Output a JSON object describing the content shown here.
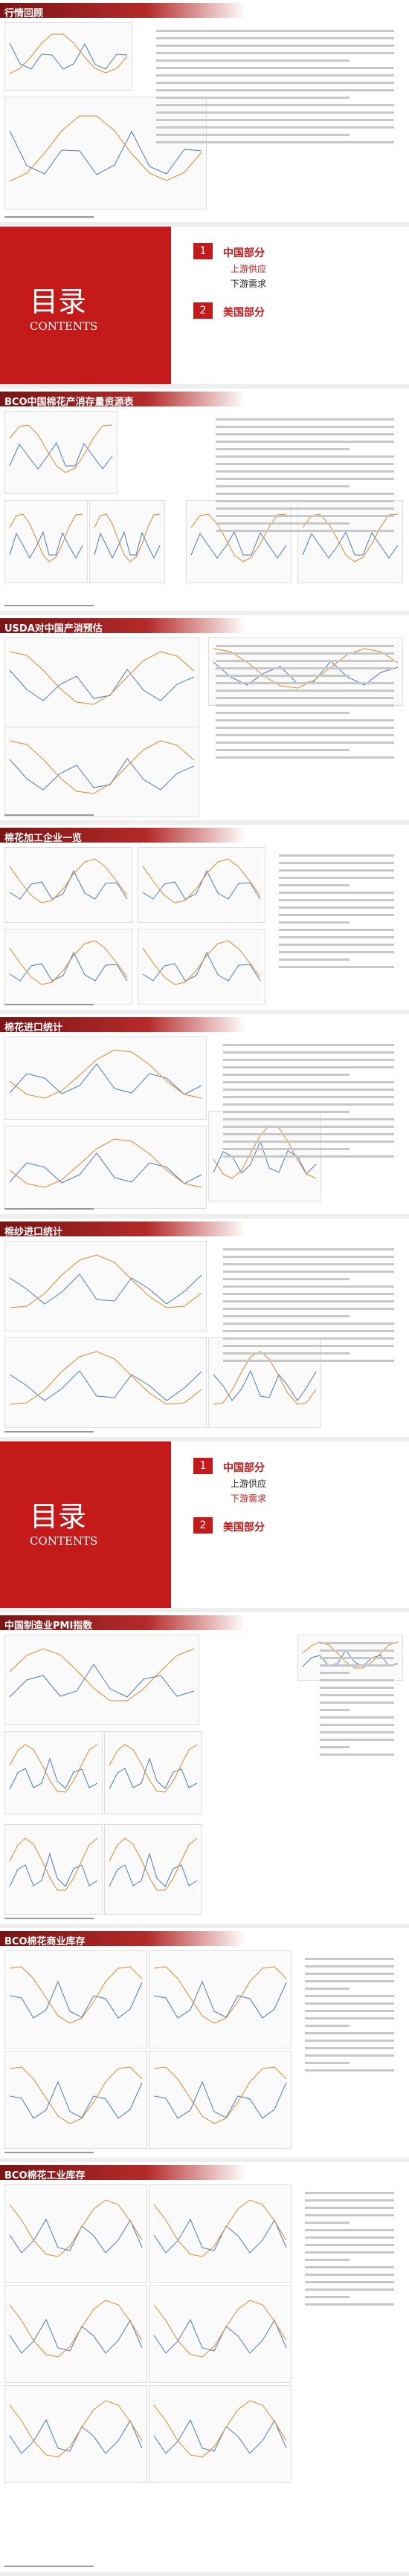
{
  "sections": [
    {
      "kind": "slide",
      "title": "行情回顾"
    },
    {
      "kind": "contents",
      "title": "目录",
      "subtitle": "CONTENTS",
      "items": [
        {
          "number": "1",
          "label": "中国部分",
          "subs": [
            "上游供应",
            "下游需求"
          ]
        },
        {
          "number": "2",
          "label": "美国部分",
          "subs": []
        }
      ],
      "active": "上游供应"
    },
    {
      "kind": "slide",
      "title": "BCO中国棉花产消存量资源表"
    },
    {
      "kind": "slide",
      "title": "USDA对中国产消预估"
    },
    {
      "kind": "slide",
      "title": "棉花加工企业一览"
    },
    {
      "kind": "slide",
      "title": "棉花进口统计"
    },
    {
      "kind": "slide",
      "title": "棉纱进口统计"
    },
    {
      "kind": "contents",
      "title": "目录",
      "subtitle": "CONTENTS",
      "items": [
        {
          "number": "1",
          "label": "中国部分",
          "subs": [
            "上游供应",
            "下游需求"
          ]
        },
        {
          "number": "2",
          "label": "美国部分",
          "subs": []
        }
      ],
      "active": "下游需求"
    },
    {
      "kind": "slide",
      "title": "中国制造业PMI指数"
    },
    {
      "kind": "slide",
      "title": "BCO棉花商业库存"
    },
    {
      "kind": "slide",
      "title": "BCO棉花工业库存"
    }
  ]
}
